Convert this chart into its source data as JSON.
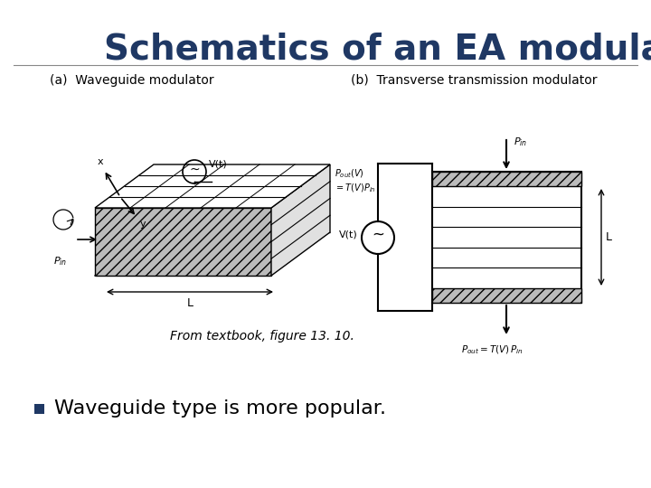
{
  "title": "Schematics of an EA modulator",
  "title_color": "#1F3864",
  "title_fontsize": 28,
  "bg_color": "#FFFFFF",
  "caption": "From textbook, figure 13. 10.",
  "caption_fontsize": 10,
  "bullet_text": "Waveguide type is more popular.",
  "bullet_fontsize": 16,
  "corner_colors": [
    "#FFB800",
    "#CC0000",
    "#1F3864"
  ],
  "label_a": "(a)  Waveguide modulator",
  "label_b": "(b)  Transverse transmission modulator",
  "label_fontsize": 10
}
